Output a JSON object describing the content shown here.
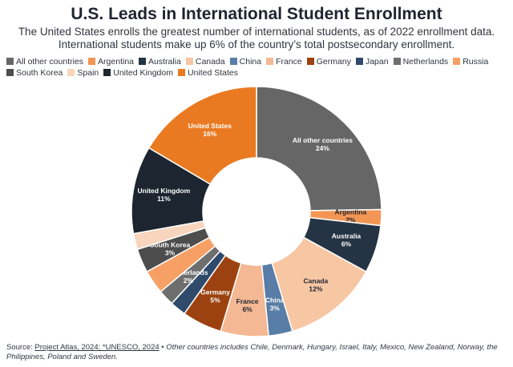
{
  "title": "U.S. Leads in International Student Enrollment",
  "subtitle": "The United States enrolls the greatest number of international students, as of 2022 enrollment data. International students make up 6% of the country’s total postsecondary enrollment.",
  "source": {
    "label": "Source:",
    "links": "Project Atlas, 2024; *UNESCO, 2024",
    "separator": " • ",
    "note": "Other countries includes Chile, Denmark, Hungary, Israel, Italy, Mexico, New Zealand, Norway, the Philippines, Poland and Sweden."
  },
  "chart_data": {
    "type": "pie",
    "donut": true,
    "legend_position": "top-left",
    "slices": [
      {
        "name": "All other countries",
        "value": 24,
        "label": "All other countries\n24%",
        "color": "#666666",
        "text_color": "#ffffff"
      },
      {
        "name": "Argentina",
        "value": 2,
        "label": "Argentina\n2%",
        "color": "#f39654",
        "text_color": "#1e2530"
      },
      {
        "name": "Australia",
        "value": 6,
        "label": "Australia\n6%",
        "color": "#243444",
        "text_color": "#ffffff"
      },
      {
        "name": "Canada",
        "value": 12,
        "label": "Canada\n12%",
        "color": "#f7c6a3",
        "text_color": "#1e2530"
      },
      {
        "name": "China",
        "value": 3,
        "label": "China\n3%",
        "color": "#587da6",
        "text_color": "#ffffff"
      },
      {
        "name": "France",
        "value": 6,
        "label": "France\n6%",
        "color": "#f4b894",
        "text_color": "#1e2530"
      },
      {
        "name": "Germany",
        "value": 5,
        "label": "Germany\n5%",
        "color": "#9c4211",
        "text_color": "#ffffff"
      },
      {
        "name": "Japan",
        "value": 2,
        "label": "",
        "color": "#2f4a6b",
        "text_color": "#ffffff"
      },
      {
        "name": "Netherlands",
        "value": 2,
        "label": "Netherlands\n2%",
        "color": "#6e6e6e",
        "text_color": "#ffffff"
      },
      {
        "name": "Russia",
        "value": 3,
        "label": "",
        "color": "#f7a065",
        "text_color": "#1e2530"
      },
      {
        "name": "South Korea",
        "value": 3,
        "label": "South Korea\n3%",
        "color": "#4d4d4d",
        "text_color": "#ffffff"
      },
      {
        "name": "Spain",
        "value": 2,
        "label": "",
        "color": "#f8d5bd",
        "text_color": "#1e2530"
      },
      {
        "name": "United Kingdom",
        "value": 11,
        "label": "United Kingdom\n11%",
        "color": "#1c2530",
        "text_color": "#ffffff"
      },
      {
        "name": "United States",
        "value": 16,
        "label": "United States\n16%",
        "color": "#ea7a22",
        "text_color": "#ffffff"
      }
    ]
  }
}
